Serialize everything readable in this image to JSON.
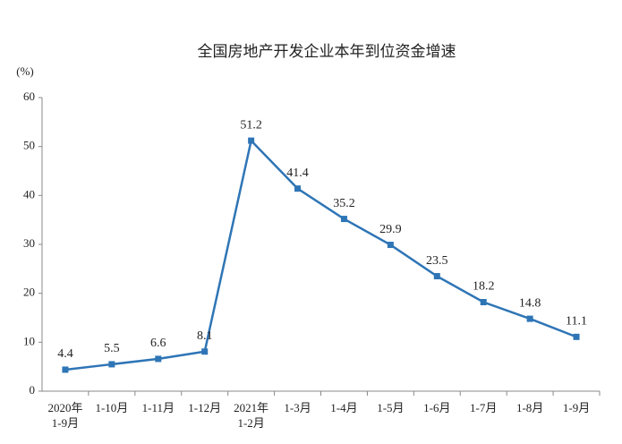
{
  "chart_data": {
    "type": "line",
    "title": "全国房地产开发企业本年到位资金增速",
    "y_label": "(%)",
    "categories": [
      "2020年\n1-9月",
      "1-10月",
      "1-11月",
      "1-12月",
      "2021年\n1-2月",
      "1-3月",
      "1-4月",
      "1-5月",
      "1-6月",
      "1-7月",
      "1-8月",
      "1-9月"
    ],
    "values": [
      4.4,
      5.5,
      6.6,
      8.1,
      51.2,
      41.4,
      35.2,
      29.9,
      23.5,
      18.2,
      14.8,
      11.1
    ],
    "color": "#2e75b6",
    "ylim": [
      0,
      60
    ],
    "yticks": [
      0,
      10,
      20,
      30,
      40,
      50,
      60
    ],
    "grid": false
  }
}
